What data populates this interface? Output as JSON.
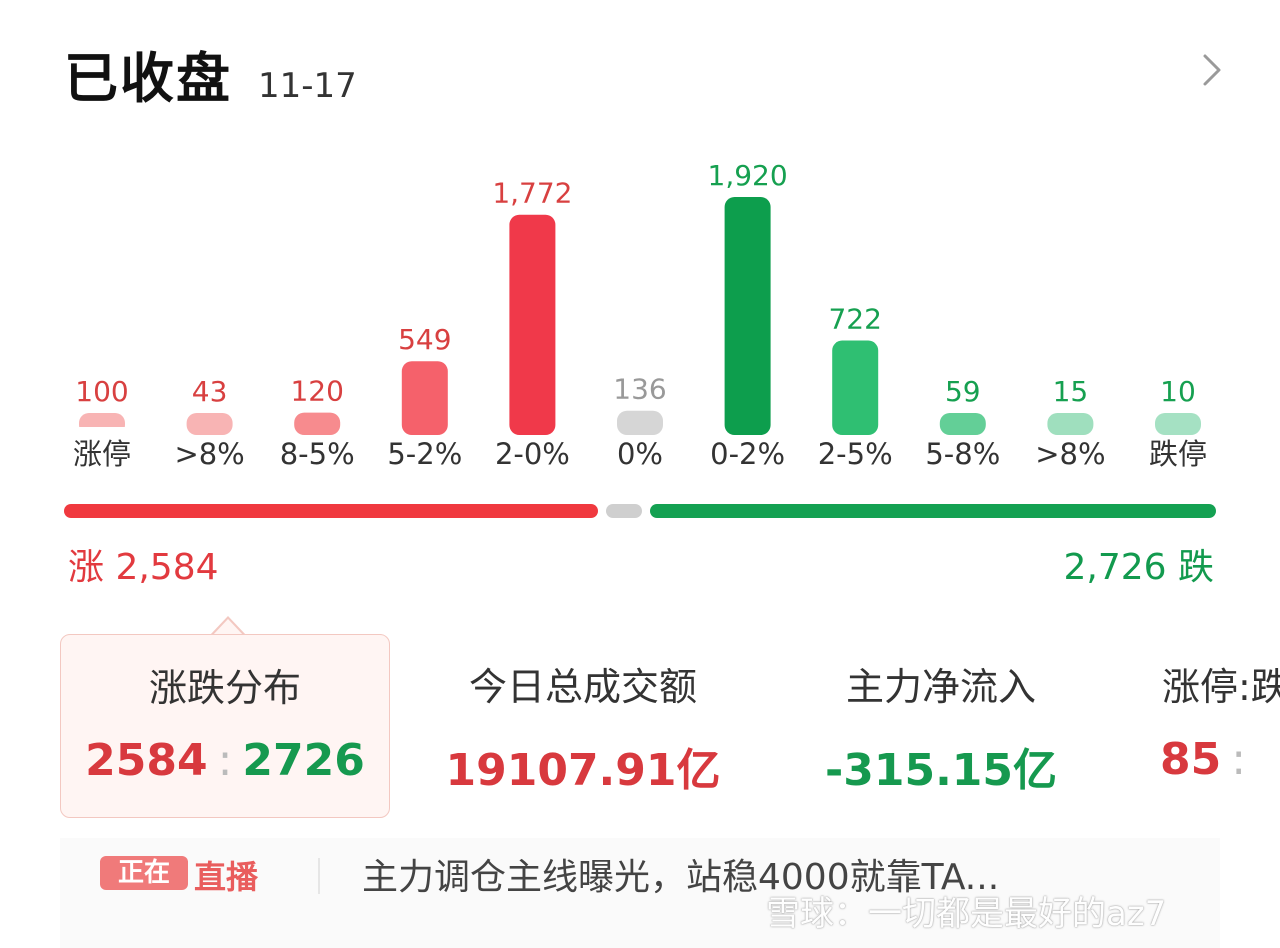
{
  "header": {
    "title": "已收盘",
    "date": "11-17"
  },
  "chart_data": {
    "type": "bar",
    "categories": [
      "涨停",
      ">8%",
      "8-5%",
      "5-2%",
      "2-0%",
      "0%",
      "0-2%",
      "2-5%",
      "5-8%",
      ">8%",
      "跌停"
    ],
    "values": [
      100,
      43,
      120,
      549,
      1772,
      136,
      1920,
      722,
      59,
      15,
      10
    ],
    "value_labels": [
      "100",
      "43",
      "120",
      "549",
      "1,772",
      "136",
      "1,920",
      "722",
      "59",
      "15",
      "10"
    ],
    "colors": [
      "#f8b4b4",
      "#f8b4b4",
      "#f78b8e",
      "#f5616b",
      "#f0394a",
      "#d6d6d6",
      "#0d9e4d",
      "#2fbf72",
      "#63cf97",
      "#9fdfbe",
      "#a5e1c3"
    ],
    "label_colors": [
      "#d84040",
      "#d84040",
      "#d84040",
      "#d84040",
      "#d84040",
      "#999999",
      "#16a050",
      "#16a050",
      "#16a050",
      "#16a050",
      "#16a050"
    ]
  },
  "summary": {
    "up_label": "涨 2,584",
    "down_label": "2,726 跌"
  },
  "cards": [
    {
      "label": "涨跌分布",
      "up": "2584",
      "colon": ":",
      "down": "2726"
    },
    {
      "label": "今日总成交额",
      "value": "19107.91亿"
    },
    {
      "label": "主力净流入",
      "value": "-315.15亿"
    },
    {
      "label": "涨停:跌",
      "up": "85",
      "colon": ":"
    }
  ],
  "live": {
    "badge": "正在",
    "word": "直播",
    "text": "主力调仓主线曝光，站稳4000就靠TA..."
  },
  "watermark": "雪球：一切都是最好的az7"
}
